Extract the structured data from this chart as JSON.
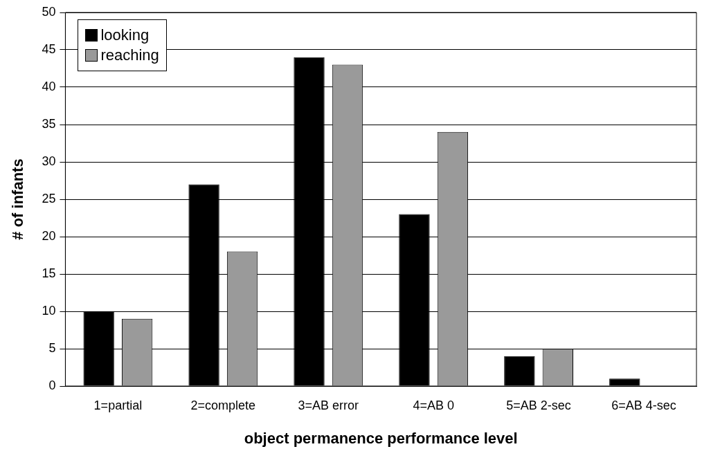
{
  "chart_data": {
    "type": "bar",
    "xlabel": "object permanence performance level",
    "ylabel": "# of infants",
    "categories": [
      "1=partial",
      "2=complete",
      "3=AB error",
      "4=AB 0",
      "5=AB 2-sec",
      "6=AB 4-sec"
    ],
    "series": [
      {
        "name": "looking",
        "color": "#000000",
        "values": [
          10,
          27,
          44,
          23,
          4,
          1
        ]
      },
      {
        "name": "reaching",
        "color": "#9a9a9a",
        "values": [
          9,
          18,
          43,
          34,
          5,
          0
        ]
      }
    ],
    "ylim": [
      0,
      50
    ],
    "yticks": [
      0,
      5,
      10,
      15,
      20,
      25,
      30,
      35,
      40,
      45,
      50
    ],
    "grid": "y",
    "legend": "top left"
  }
}
